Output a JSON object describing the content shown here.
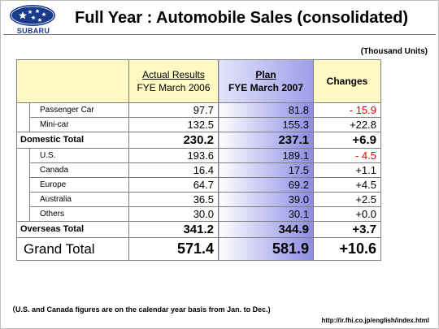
{
  "header": {
    "logo_text": "SUBARU",
    "title": "Full Year : Automobile Sales (consolidated)",
    "units": "(Thousand Units)"
  },
  "table": {
    "col_actual_line1": "Actual Results",
    "col_actual_line2": "FYE March 2006",
    "col_plan_line1": "Plan",
    "col_plan_line2": "FYE March 2007",
    "col_changes": "Changes",
    "domestic": {
      "rows": [
        {
          "label": "Passenger Car",
          "actual": "97.7",
          "plan": "81.8",
          "change": "- 15.9"
        },
        {
          "label": "Mini-car",
          "actual": "132.5",
          "plan": "155.3",
          "change": "+22.8"
        }
      ],
      "total": {
        "label": "Domestic Total",
        "actual": "230.2",
        "plan": "237.1",
        "change": "+6.9"
      }
    },
    "overseas": {
      "rows": [
        {
          "label": "U.S.",
          "actual": "193.6",
          "plan": "189.1",
          "change": "- 4.5"
        },
        {
          "label": "Canada",
          "actual": "16.4",
          "plan": "17.5",
          "change": "+1.1"
        },
        {
          "label": "Europe",
          "actual": "64.7",
          "plan": "69.2",
          "change": "+4.5"
        },
        {
          "label": "Australia",
          "actual": "36.5",
          "plan": "39.0",
          "change": "+2.5"
        },
        {
          "label": "Others",
          "actual": "30.0",
          "plan": "30.1",
          "change": "+0.0"
        }
      ],
      "total": {
        "label": "Overseas Total",
        "actual": "341.2",
        "plan": "344.9",
        "change": "+3.7"
      }
    },
    "grand_total": {
      "label": "Grand Total",
      "actual": "571.4",
      "plan": "581.9",
      "change": "+10.6"
    }
  },
  "footnote": "（U.S. and Canada figures are on the calendar year basis from Jan. to Dec.)",
  "url": "http://ir.fhi.co.jp/english/index.html",
  "colors": {
    "header_yellow": "#fff9c4",
    "plan_blue": "#8c8ce3",
    "negative_red": "#e00000",
    "logo_blue": "#1a3a8c"
  }
}
